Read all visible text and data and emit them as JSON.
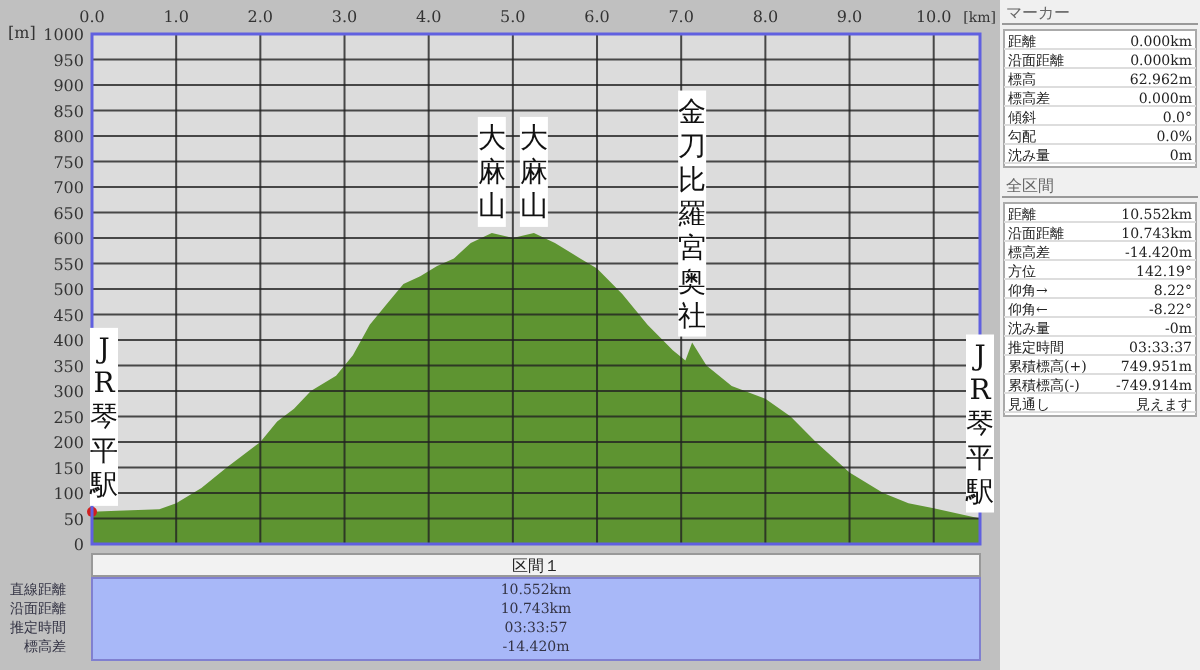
{
  "chart_data": [
    {
      "type": "area",
      "xlabel": "[km]",
      "ylabel": "[m]",
      "x": [
        0,
        0.3,
        0.8,
        1.0,
        1.3,
        1.6,
        1.8,
        2.0,
        2.2,
        2.4,
        2.6,
        2.9,
        3.1,
        3.3,
        3.5,
        3.7,
        3.9,
        4.1,
        4.3,
        4.5,
        4.75,
        5.0,
        5.25,
        5.5,
        5.8,
        6.0,
        6.3,
        6.6,
        6.9,
        7.05,
        7.13,
        7.3,
        7.6,
        8.0,
        8.3,
        8.6,
        9.0,
        9.4,
        9.7,
        10.0,
        10.55
      ],
      "series": [
        {
          "color": "#5e9431",
          "values": [
            63,
            65,
            68,
            80,
            110,
            150,
            175,
            200,
            240,
            265,
            300,
            330,
            370,
            430,
            470,
            510,
            525,
            545,
            560,
            590,
            610,
            600,
            610,
            590,
            560,
            540,
            490,
            430,
            380,
            360,
            395,
            350,
            310,
            285,
            250,
            200,
            140,
            100,
            80,
            70,
            50
          ]
        },
        {
          "type": "scatter",
          "color": "#d02020",
          "x": [
            0
          ],
          "values": [
            63
          ]
        }
      ],
      "xlim": [
        0,
        10.55
      ],
      "ylim": [
        0,
        1000
      ],
      "xticks": [
        {
          "value": 0,
          "label": "0.0"
        },
        {
          "value": 1,
          "label": "1.0"
        },
        {
          "value": 2,
          "label": "2.0"
        },
        {
          "value": 3,
          "label": "3.0"
        },
        {
          "value": 4,
          "label": "4.0"
        },
        {
          "value": 5,
          "label": "5.0"
        },
        {
          "value": 6,
          "label": "6.0"
        },
        {
          "value": 7,
          "label": "7.0"
        },
        {
          "value": 8,
          "label": "8.0"
        },
        {
          "value": 9,
          "label": "9.0"
        },
        {
          "value": 10,
          "label": "10.0"
        }
      ],
      "yticks": [
        0,
        50,
        100,
        150,
        200,
        250,
        300,
        350,
        400,
        450,
        500,
        550,
        600,
        650,
        700,
        750,
        800,
        850,
        900,
        950,
        1000
      ],
      "grid": true,
      "annotations": [
        {
          "text": "JR琴平駅",
          "x": 0,
          "y": 63
        },
        {
          "text": "大麻山",
          "x": 4.75,
          "y": 610
        },
        {
          "text": "大麻山",
          "x": 5.25,
          "y": 610
        },
        {
          "text": "金刀比羅宮奥社",
          "x": 7.13,
          "y": 395
        },
        {
          "text": "JR琴平駅",
          "x": 10.55,
          "y": 50
        },
        "区間１",
        "直線距離",
        "10.552km",
        "沿面距離",
        "10.743km",
        "推定時間",
        "03:33:57",
        "標高差",
        "-14.420m"
      ]
    },
    {
      "type": "other",
      "title": "マーカー",
      "annotations": [
        "距離",
        "0.000km",
        "沿面距離",
        "0.000km",
        "標高",
        "62.962m",
        "標高差",
        "0.000m",
        "傾斜",
        "0.0°",
        "勾配",
        "0.0%",
        "沈み量",
        "0m"
      ]
    },
    {
      "type": "other",
      "title": "全区間",
      "annotations": [
        "距離",
        "10.552km",
        "沿面距離",
        "10.743km",
        "標高差",
        "-14.420m",
        "方位",
        "142.19°",
        "仰角→",
        "8.22°",
        "仰角←",
        "-8.22°",
        "沈み量",
        "-0m",
        "推定時間",
        "03:33:37",
        "累積標高(+)",
        "749.951m",
        "累積標高(-)",
        "-749.914m",
        "見通し",
        "見えます"
      ]
    }
  ]
}
